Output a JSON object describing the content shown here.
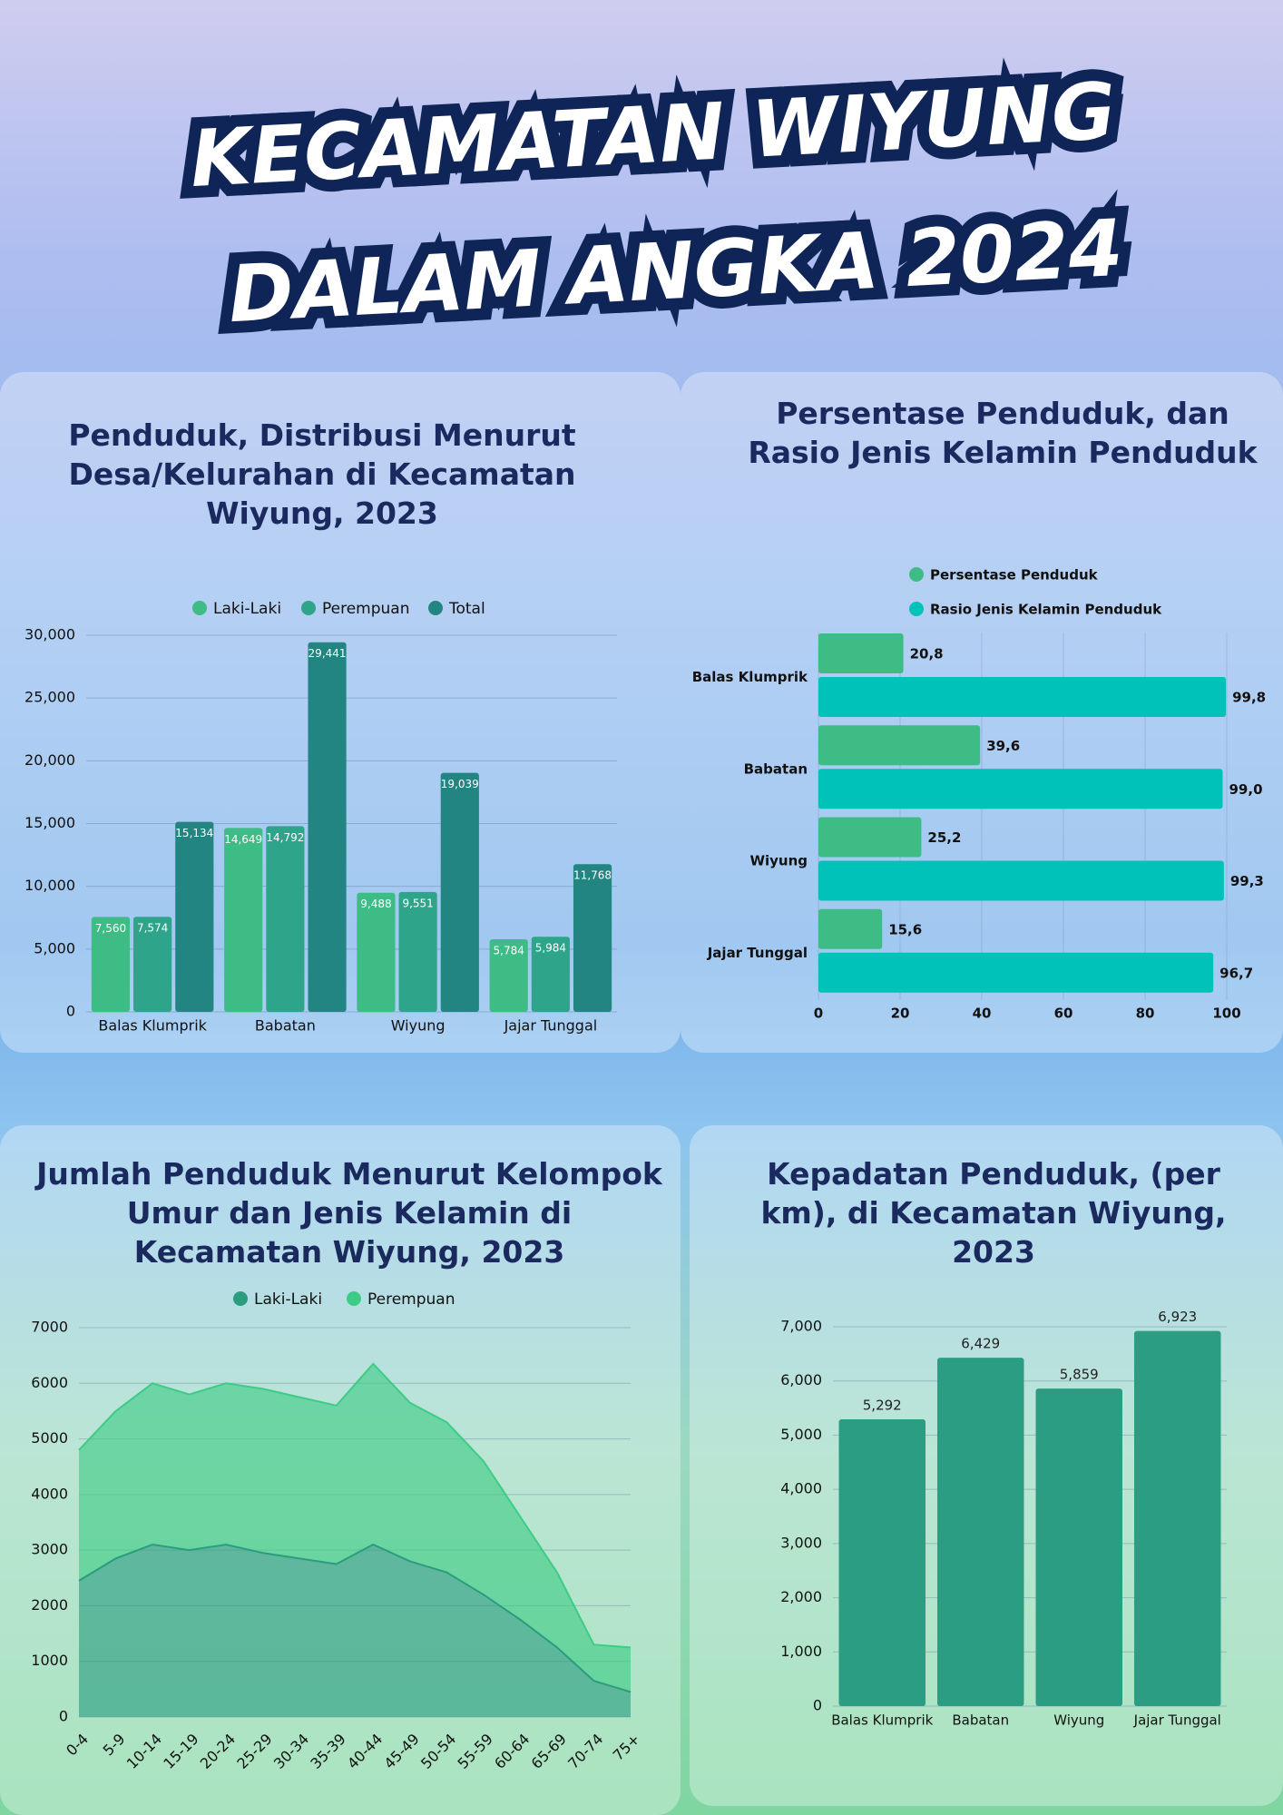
{
  "header": {
    "title_line1": "KECAMATAN WIYUNG",
    "title_line2": "DALAM ANGKA 2024"
  },
  "chart_data": [
    {
      "type": "bar",
      "title": "Penduduk, Distribusi Menurut Desa/Kelurahan di Kecamatan Wiyung, 2023",
      "categories": [
        "Balas Klumprik",
        "Babatan",
        "Wiyung",
        "Jajar Tunggal"
      ],
      "series": [
        {
          "name": "Laki-Laki",
          "color": "#3dbd85",
          "values": [
            7560,
            14649,
            9488,
            5784
          ],
          "value_labels": [
            "7,560",
            "14,649",
            "9,488",
            "5,784"
          ]
        },
        {
          "name": "Perempuan",
          "color": "#2ea58a",
          "values": [
            7574,
            14792,
            9551,
            5984
          ],
          "value_labels": [
            "7,574",
            "14,792",
            "9,551",
            "5,984"
          ]
        },
        {
          "name": "Total",
          "color": "#238582",
          "values": [
            15134,
            29441,
            19039,
            11768
          ],
          "value_labels": [
            "15,134",
            "29,441",
            "19,039",
            "11,768"
          ]
        }
      ],
      "ylim": [
        0,
        30000
      ],
      "yticks": [
        0,
        {
          "value": 5000,
          "label": "5,000"
        },
        {
          "value": 10000,
          "label": "10,000"
        },
        {
          "value": 15000,
          "label": "15,000"
        },
        {
          "value": 20000,
          "label": "20,000"
        },
        {
          "value": 25000,
          "label": "25,000"
        },
        {
          "value": 30000,
          "label": "30,000"
        }
      ],
      "grid": true
    },
    {
      "type": "hbar",
      "title": "Persentase Penduduk, dan Rasio Jenis Kelamin Penduduk",
      "categories": [
        "Balas Klumprik",
        "Babatan",
        "Wiyung",
        "Jajar Tunggal"
      ],
      "series": [
        {
          "name": "Persentase Penduduk",
          "color": "#3dbd85",
          "values": [
            20.8,
            39.6,
            25.2,
            15.6
          ],
          "value_labels": [
            "20,8",
            "39,6",
            "25,2",
            "15,6"
          ]
        },
        {
          "name": "Rasio Jenis Kelamin Penduduk",
          "color": "#00c2b8",
          "values": [
            99.8,
            99.0,
            99.3,
            96.7
          ],
          "value_labels": [
            "99,8",
            "99,0",
            "99,3",
            "96,7"
          ]
        }
      ],
      "xlim": [
        0,
        100
      ],
      "xticks": [
        0,
        20,
        40,
        60,
        80,
        100
      ],
      "grid": true
    },
    {
      "type": "area",
      "stacked": true,
      "title": "Jumlah Penduduk Menurut Kelompok Umur dan Jenis Kelamin di Kecamatan Wiyung, 2023",
      "categories": [
        "0-4",
        "5-9",
        "10-14",
        "15-19",
        "20-24",
        "25-29",
        "30-34",
        "35-39",
        "40-44",
        "45-49",
        "50-54",
        "55-59",
        "60-64",
        "65-69",
        "70-74",
        "75+"
      ],
      "series": [
        {
          "name": "Laki-Laki",
          "color": "#2a9d7f",
          "values": [
            2450,
            2850,
            3100,
            3000,
            3100,
            2950,
            2850,
            2750,
            3100,
            2800,
            2600,
            2200,
            1750,
            1250,
            650,
            450
          ]
        },
        {
          "name": "Perempuan",
          "color": "#3dcc85",
          "values": [
            2350,
            2650,
            2900,
            2800,
            2900,
            2950,
            2900,
            2850,
            3250,
            2850,
            2700,
            2400,
            1850,
            1350,
            650,
            800
          ]
        }
      ],
      "ylim": [
        0,
        7000
      ],
      "yticks": [
        0,
        1000,
        2000,
        3000,
        4000,
        5000,
        6000,
        7000
      ],
      "grid": true
    },
    {
      "type": "bar",
      "title": "Kepadatan Penduduk, (per km), di Kecamatan Wiyung, 2023",
      "categories": [
        "Balas Klumprik",
        "Babatan",
        "Wiyung",
        "Jajar Tunggal"
      ],
      "series": [
        {
          "color": "#2a9d82",
          "values": [
            5292,
            6429,
            5859,
            6923
          ],
          "value_labels": [
            "5,292",
            "6,429",
            "5,859",
            "6,923"
          ]
        }
      ],
      "ylim": [
        0,
        7000
      ],
      "yticks": [
        0,
        {
          "value": 1000,
          "label": "1,000"
        },
        {
          "value": 2000,
          "label": "2,000"
        },
        {
          "value": 3000,
          "label": "3,000"
        },
        {
          "value": 4000,
          "label": "4,000"
        },
        {
          "value": 5000,
          "label": "5,000"
        },
        {
          "value": 6000,
          "label": "6,000"
        },
        {
          "value": 7000,
          "label": "7,000"
        }
      ],
      "grid": true
    }
  ]
}
